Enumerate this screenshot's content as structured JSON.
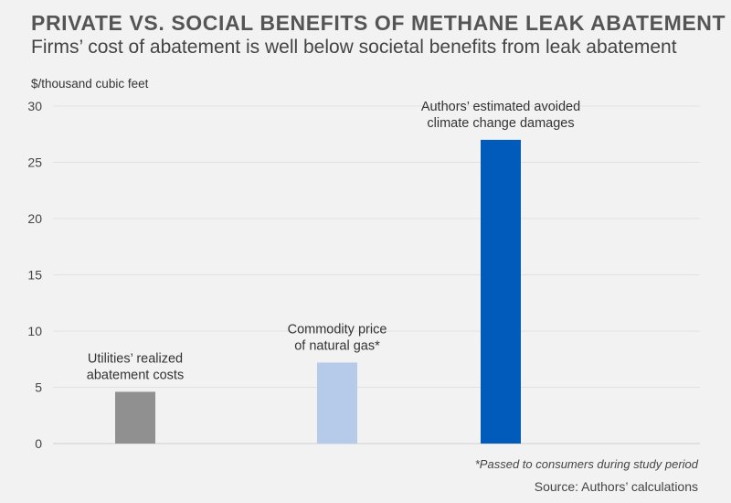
{
  "header": {
    "title": "PRIVATE VS. SOCIAL BENEFITS OF METHANE LEAK ABATEMENT",
    "subtitle": "Firms’ cost of abatement is well below societal benefits from leak abatement"
  },
  "footer": {
    "footnote": "*Passed to consumers during study period",
    "source": "Source: Authors’ calculations"
  },
  "chart_data": {
    "type": "bar",
    "ylabel": "$/thousand cubic feet",
    "xlabel": "",
    "ylim": [
      0,
      30
    ],
    "yticks": [
      0,
      5,
      10,
      15,
      20,
      25,
      30
    ],
    "grid": true,
    "categories": [
      [
        "Utilities’ realized",
        "abatement costs"
      ],
      [
        "Commodity price",
        "of natural gas*"
      ],
      [
        "Authors’ estimated avoided",
        "climate change damages"
      ]
    ],
    "values": [
      4.6,
      7.2,
      27.0
    ],
    "colors": [
      "#909090",
      "#b6cbea",
      "#005bbb"
    ]
  }
}
